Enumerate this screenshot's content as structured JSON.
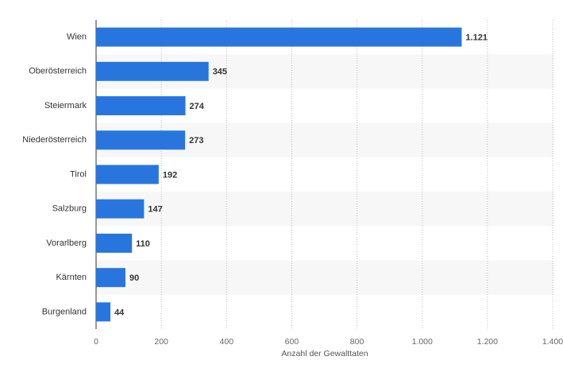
{
  "chart_data": {
    "type": "bar",
    "orientation": "horizontal",
    "x_label": "Anzahl der Gewalttaten",
    "categories": [
      "Wien",
      "Oberösterreich",
      "Steiermark",
      "Niederösterreich",
      "Tirol",
      "Salzburg",
      "Vorarlberg",
      "Kärnten",
      "Burgenland"
    ],
    "values": [
      1121,
      345,
      274,
      273,
      192,
      147,
      110,
      90,
      44
    ],
    "value_labels": [
      "1.121",
      "345",
      "274",
      "273",
      "192",
      "147",
      "110",
      "90",
      "44"
    ],
    "color": "#2876dd",
    "xlim": [
      0,
      1400
    ],
    "xticks": [
      0,
      200,
      400,
      600,
      800,
      {
        "value": 1000,
        "label": "1.000"
      },
      {
        "value": 1200,
        "label": "1.200"
      },
      {
        "value": 1400,
        "label": "1.400"
      }
    ],
    "grid": true
  }
}
